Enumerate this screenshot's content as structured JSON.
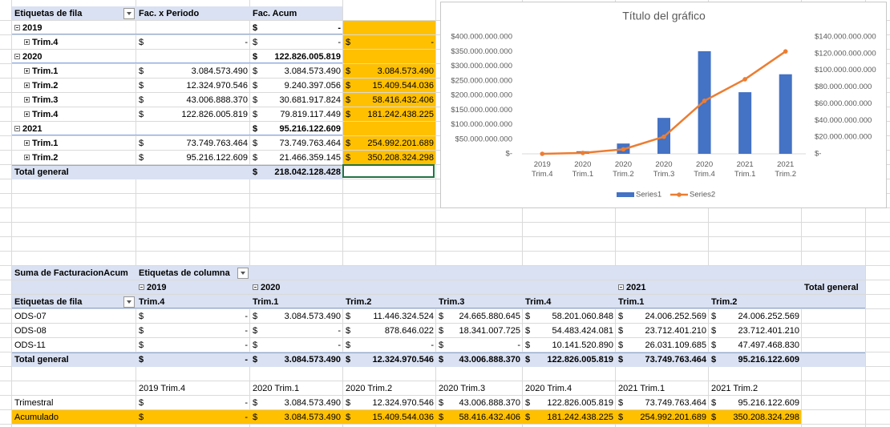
{
  "pivot1": {
    "headers": [
      "Etiquetas de fila",
      "Fac. x Periodo",
      "Fac. Acum"
    ],
    "rows": [
      {
        "label": "2019",
        "cells": [
          null,
          "$ -",
          null
        ]
      },
      {
        "label": "Trim.4",
        "cells": [
          "$ -",
          "$ -",
          "$ -"
        ]
      },
      {
        "label": "2020",
        "cells": [
          null,
          "$ 122.826.005.819",
          null
        ]
      },
      {
        "label": "Trim.1",
        "cells": [
          "$ 3.084.573.490",
          "$ 3.084.573.490",
          "$ 3.084.573.490"
        ]
      },
      {
        "label": "Trim.2",
        "cells": [
          "$ 12.324.970.546",
          "$ 9.240.397.056",
          "$ 15.409.544.036"
        ]
      },
      {
        "label": "Trim.3",
        "cells": [
          "$ 43.006.888.370",
          "$ 30.681.917.824",
          "$ 58.416.432.406"
        ]
      },
      {
        "label": "Trim.4",
        "cells": [
          "$ 122.826.005.819",
          "$ 79.819.117.449",
          "$ 181.242.438.225"
        ]
      },
      {
        "label": "2021",
        "cells": [
          null,
          "$ 95.216.122.609",
          null
        ]
      },
      {
        "label": "Trim.1",
        "cells": [
          "$ 73.749.763.464",
          "$ 73.749.763.464",
          "$ 254.992.201.689"
        ]
      },
      {
        "label": "Trim.2",
        "cells": [
          "$ 95.216.122.609",
          "$ 21.466.359.145",
          "$ 350.208.324.298"
        ]
      }
    ],
    "total": {
      "label": "Total general",
      "cells": [
        null,
        "$ 218.042.128.428",
        null
      ]
    }
  },
  "pivot2": {
    "title": "Suma de FacturacionAcum",
    "column_label": "Etiquetas de columna",
    "years": [
      "2019",
      "2020",
      "2021"
    ],
    "grand_total": "Total general",
    "row_label": "Etiquetas de fila",
    "periods": [
      "Trim.4",
      "Trim.1",
      "Trim.2",
      "Trim.3",
      "Trim.4",
      "Trim.1",
      "Trim.2"
    ],
    "rows": [
      {
        "label": "ODS-07",
        "cells": [
          "$ -",
          "$ 3.084.573.490",
          "$ 11.446.324.524",
          "$ 24.665.880.645",
          "$ 58.201.060.848",
          "$ 24.006.252.569",
          "$ 24.006.252.569"
        ]
      },
      {
        "label": "ODS-08",
        "cells": [
          "$ -",
          "$ -",
          "$ 878.646.022",
          "$ 18.341.007.725",
          "$ 54.483.424.081",
          "$ 23.712.401.210",
          "$ 23.712.401.210"
        ]
      },
      {
        "label": "ODS-11",
        "cells": [
          "$ -",
          "$ -",
          "$ -",
          "$ -",
          "$ 10.141.520.890",
          "$ 26.031.109.685",
          "$ 47.497.468.830"
        ]
      }
    ],
    "total": {
      "label": "Total general",
      "cells": [
        "$ -",
        "$ 3.084.573.490",
        "$ 12.324.970.546",
        "$ 43.006.888.370",
        "$ 122.826.005.819",
        "$ 73.749.763.464",
        "$ 95.216.122.609"
      ]
    }
  },
  "summary": {
    "headers": [
      "2019 Trim.4",
      "2020 Trim.1",
      "2020 Trim.2",
      "2020 Trim.3",
      "2020 Trim.4",
      "2021 Trim.1",
      "2021 Trim.2"
    ],
    "rows": [
      {
        "label": "Trimestral",
        "cells": [
          "$ -",
          "$ 3.084.573.490",
          "$ 12.324.970.546",
          "$ 43.006.888.370",
          "$ 122.826.005.819",
          "$ 73.749.763.464",
          "$ 95.216.122.609"
        ]
      },
      {
        "label": "Acumulado",
        "cells": [
          "$ -",
          "$ 3.084.573.490",
          "$ 15.409.544.036",
          "$ 58.416.432.406",
          "$ 181.242.438.225",
          "$ 254.992.201.689",
          "$ 350.208.324.298"
        ]
      }
    ]
  },
  "chart_data": {
    "type": "combo",
    "title": "Título del gráfico",
    "categories": [
      "2019 Trim.4",
      "2020 Trim.1",
      "2020 Trim.2",
      "2020 Trim.3",
      "2020 Trim.4",
      "2021 Trim.1",
      "2021 Trim.2"
    ],
    "series": [
      {
        "name": "Series1",
        "type": "bar",
        "axis": "y2",
        "color": "#4472c4",
        "values": [
          0,
          3084573490,
          12324970546,
          43006888370,
          122826005819,
          73749763464,
          95216122609
        ]
      },
      {
        "name": "Series2",
        "type": "line",
        "axis": "y",
        "color": "#ed7d31",
        "values": [
          0,
          3084573490,
          15409544036,
          58416432406,
          181242438225,
          254992201689,
          350208324298
        ]
      }
    ],
    "ylim": [
      0,
      400000000000
    ],
    "yticks": [
      {
        "value": 0,
        "label": "$-"
      },
      {
        "value": 50000000000,
        "label": "$50.000.000.000"
      },
      {
        "value": 100000000000,
        "label": "$100.000.000.000"
      },
      {
        "value": 150000000000,
        "label": "$150.000.000.000"
      },
      {
        "value": 200000000000,
        "label": "$200.000.000.000"
      },
      {
        "value": 250000000000,
        "label": "$250.000.000.000"
      },
      {
        "value": 300000000000,
        "label": "$300.000.000.000"
      },
      {
        "value": 350000000000,
        "label": "$350.000.000.000"
      },
      {
        "value": 400000000000,
        "label": "$400.000.000.000"
      }
    ],
    "y2lim": [
      0,
      140000000000
    ],
    "y2ticks": [
      {
        "value": 0,
        "label": "$-"
      },
      {
        "value": 20000000000,
        "label": "$20.000.000.000"
      },
      {
        "value": 40000000000,
        "label": "$40.000.000.000"
      },
      {
        "value": 60000000000,
        "label": "$60.000.000.000"
      },
      {
        "value": 80000000000,
        "label": "$80.000.000.000"
      },
      {
        "value": 100000000000,
        "label": "$100.000.000.000"
      },
      {
        "value": 120000000000,
        "label": "$120.000.000.000"
      },
      {
        "value": 140000000000,
        "label": "$140.000.000.000"
      }
    ],
    "grid": false,
    "legend": "bottom"
  }
}
